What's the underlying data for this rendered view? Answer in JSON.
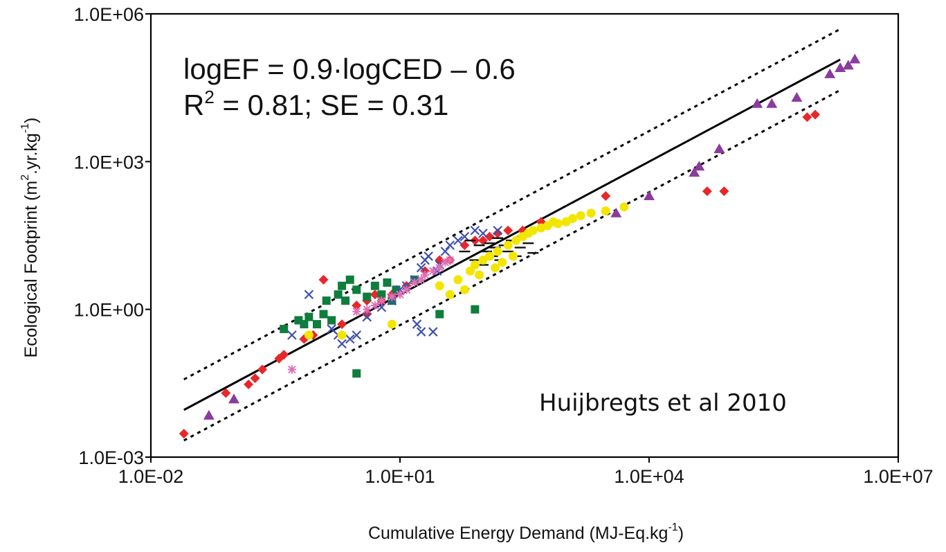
{
  "chart_data": {
    "type": "scatter",
    "title": "",
    "xlabel": "Cumulative Energy Demand (MJ-Eq.kg",
    "xlabel_sup": "-1",
    "xlabel_end": ")",
    "ylabel": "Ecological Footprint (m",
    "ylabel_sup1": "2",
    "ylabel_mid": ".yr.kg",
    "ylabel_sup2": "-1",
    "ylabel_end": ")",
    "xscale": "log",
    "yscale": "log",
    "xlim": [
      0.01,
      10000000
    ],
    "ylim": [
      0.001,
      1000000
    ],
    "x_ticks": [
      {
        "value": 0.01,
        "label": "1.0E-02"
      },
      {
        "value": 10,
        "label": "1.0E+01"
      },
      {
        "value": 10000,
        "label": "1.0E+04"
      },
      {
        "value": 10000000,
        "label": "1.0E+07"
      }
    ],
    "y_ticks": [
      {
        "value": 0.001,
        "label": "1.0E-03"
      },
      {
        "value": 1,
        "label": "1.0E+00"
      },
      {
        "value": 1000,
        "label": "1.0E+03"
      },
      {
        "value": 1000000,
        "label": "1.0E+06"
      }
    ],
    "equation_line1": "logEF = 0.9·logCED –  0.6",
    "equation_line2_a": "R",
    "equation_line2_sup": "2",
    "equation_line2_b": " = 0.81; SE = 0.31",
    "credit": "Huijbregts et al 2010",
    "grid": false,
    "legend": "none",
    "regression": {
      "slope": 0.9,
      "intercept": -0.6,
      "se": 0.31,
      "x_range": [
        0.025,
        2000000
      ],
      "style": "solid"
    },
    "prediction_band": {
      "offset_log10": 0.62,
      "style": "dotted"
    },
    "series": [
      {
        "marker": "diamond",
        "color": "#e8272b",
        "points": [
          [
            0.025,
            0.003
          ],
          [
            0.08,
            0.02
          ],
          [
            0.15,
            0.03
          ],
          [
            0.18,
            0.04
          ],
          [
            0.22,
            0.06
          ],
          [
            0.35,
            0.1
          ],
          [
            0.4,
            0.12
          ],
          [
            0.7,
            0.25
          ],
          [
            0.9,
            0.3
          ],
          [
            1.2,
            4
          ],
          [
            2,
            0.5
          ],
          [
            3,
            1.2
          ],
          [
            4,
            1.5
          ],
          [
            4,
            0.8
          ],
          [
            5,
            2
          ],
          [
            6,
            1.5
          ],
          [
            8,
            2
          ],
          [
            12,
            3
          ],
          [
            20,
            6
          ],
          [
            30,
            10
          ],
          [
            40,
            10
          ],
          [
            60,
            20
          ],
          [
            80,
            25
          ],
          [
            100,
            25
          ],
          [
            120,
            30
          ],
          [
            150,
            35
          ],
          [
            200,
            40
          ],
          [
            300,
            40
          ],
          [
            500,
            60
          ],
          [
            3000,
            200
          ],
          [
            50000,
            250
          ],
          [
            80000,
            250
          ],
          [
            800000,
            8000
          ],
          [
            1000000,
            9000
          ]
        ]
      },
      {
        "marker": "square",
        "color": "#0f7d3c",
        "points": [
          [
            0.4,
            0.4
          ],
          [
            0.6,
            0.6
          ],
          [
            0.7,
            0.5
          ],
          [
            0.8,
            0.7
          ],
          [
            1,
            0.5
          ],
          [
            1.2,
            0.8
          ],
          [
            1.3,
            1.5
          ],
          [
            1.5,
            0.6
          ],
          [
            1.8,
            2
          ],
          [
            2,
            3
          ],
          [
            2.2,
            1.5
          ],
          [
            2.5,
            4
          ],
          [
            3,
            0.05
          ],
          [
            3,
            2.5
          ],
          [
            4,
            1.8
          ],
          [
            5,
            3
          ],
          [
            6,
            2
          ],
          [
            7,
            3.5
          ],
          [
            8,
            1.5
          ],
          [
            9,
            2.5
          ],
          [
            15,
            4
          ],
          [
            30,
            0.8
          ],
          [
            80,
            1
          ]
        ]
      },
      {
        "marker": "x",
        "color": "#3f4fb0",
        "points": [
          [
            0.5,
            0.3
          ],
          [
            0.8,
            2
          ],
          [
            1.5,
            0.4
          ],
          [
            1.8,
            0.3
          ],
          [
            2,
            0.2
          ],
          [
            2.5,
            0.25
          ],
          [
            3,
            0.3
          ],
          [
            4,
            0.7
          ],
          [
            6,
            1.1
          ],
          [
            8,
            1.5
          ],
          [
            10,
            2.5
          ],
          [
            12,
            3
          ],
          [
            15,
            4
          ],
          [
            16,
            0.5
          ],
          [
            18,
            0.35
          ],
          [
            18,
            7
          ],
          [
            20,
            10
          ],
          [
            22,
            12
          ],
          [
            25,
            0.35
          ],
          [
            28,
            6
          ],
          [
            30,
            8
          ],
          [
            35,
            15
          ],
          [
            40,
            20
          ],
          [
            50,
            25
          ],
          [
            60,
            30
          ],
          [
            80,
            40
          ],
          [
            100,
            35
          ],
          [
            150,
            40
          ]
        ]
      },
      {
        "marker": "dash",
        "color": "#111111",
        "points": [
          [
            60,
            15
          ],
          [
            70,
            25
          ],
          [
            80,
            10
          ],
          [
            90,
            20
          ],
          [
            100,
            8
          ],
          [
            110,
            15
          ],
          [
            120,
            22
          ],
          [
            130,
            12
          ],
          [
            140,
            18
          ],
          [
            150,
            28
          ],
          [
            160,
            10
          ],
          [
            180,
            20
          ],
          [
            200,
            15
          ],
          [
            220,
            25
          ],
          [
            250,
            12
          ],
          [
            280,
            18
          ],
          [
            300,
            30
          ],
          [
            350,
            22
          ],
          [
            400,
            14
          ]
        ]
      },
      {
        "marker": "circle",
        "color": "#f2e600",
        "points": [
          [
            0.8,
            0.3
          ],
          [
            2,
            0.3
          ],
          [
            8,
            0.5
          ],
          [
            30,
            3
          ],
          [
            40,
            2
          ],
          [
            50,
            4
          ],
          [
            60,
            2.5
          ],
          [
            70,
            6
          ],
          [
            80,
            8
          ],
          [
            90,
            5
          ],
          [
            100,
            10
          ],
          [
            120,
            12
          ],
          [
            140,
            7
          ],
          [
            150,
            15
          ],
          [
            170,
            9
          ],
          [
            200,
            20
          ],
          [
            230,
            12
          ],
          [
            250,
            25
          ],
          [
            300,
            30
          ],
          [
            350,
            35
          ],
          [
            400,
            40
          ],
          [
            500,
            45
          ],
          [
            600,
            50
          ],
          [
            700,
            60
          ],
          [
            800,
            55
          ],
          [
            1000,
            60
          ],
          [
            1200,
            70
          ],
          [
            1500,
            80
          ],
          [
            2000,
            90
          ],
          [
            3000,
            100
          ],
          [
            5000,
            120
          ]
        ]
      },
      {
        "marker": "asterisk",
        "color": "#e070b8",
        "points": [
          [
            0.5,
            0.06
          ],
          [
            3,
            0.9
          ],
          [
            4,
            1
          ],
          [
            5,
            1.2
          ],
          [
            6,
            1.5
          ],
          [
            8,
            1.8
          ],
          [
            10,
            2
          ],
          [
            12,
            2.5
          ],
          [
            15,
            3.5
          ],
          [
            18,
            4
          ],
          [
            20,
            5
          ],
          [
            25,
            6
          ],
          [
            30,
            7
          ],
          [
            35,
            9
          ],
          [
            40,
            10
          ]
        ]
      },
      {
        "marker": "triangle",
        "color": "#8b3b9e",
        "points": [
          [
            0.05,
            0.007
          ],
          [
            0.1,
            0.015
          ],
          [
            4000,
            90
          ],
          [
            10000,
            200
          ],
          [
            35000,
            600
          ],
          [
            40000,
            800
          ],
          [
            70000,
            1800
          ],
          [
            200000,
            15000
          ],
          [
            300000,
            15000
          ],
          [
            600000,
            20000
          ],
          [
            1500000,
            60000
          ],
          [
            2000000,
            80000
          ],
          [
            2500000,
            90000
          ],
          [
            3000000,
            120000
          ]
        ]
      }
    ]
  }
}
